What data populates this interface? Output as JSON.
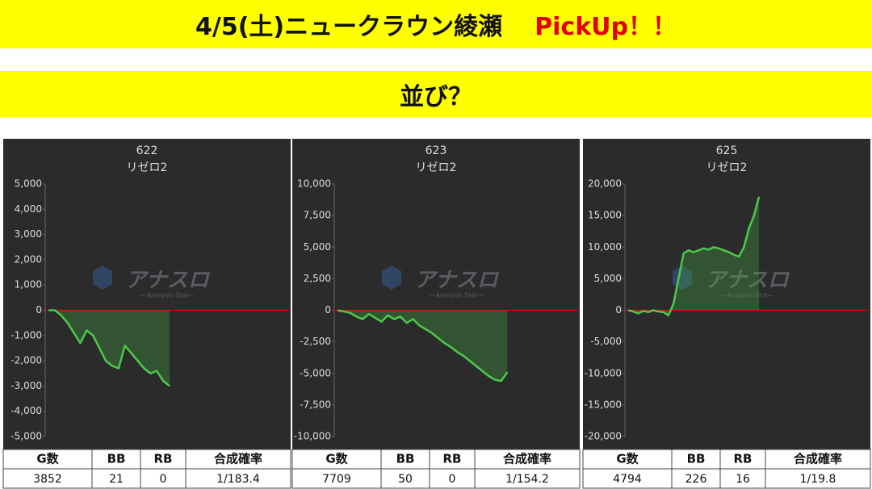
{
  "header": {
    "title": "4/5(土)ニュークラウン綾瀬",
    "highlight": "PickUp！！",
    "subtitle": "並び？"
  },
  "watermark": {
    "title": "アナスロ",
    "subtitle": "—Analysis Slot—"
  },
  "chart_data": [
    {
      "type": "line",
      "title": "622",
      "subtitle": "リゼロ2",
      "color": "#4cc94c",
      "values": [
        0,
        0,
        -200,
        -500,
        -900,
        -1300,
        -800,
        -1000,
        -1500,
        -2000,
        -2200,
        -2300,
        -1400,
        -1700,
        -2000,
        -2300,
        -2500,
        -2400,
        -2800,
        -3000
      ],
      "ylim": [
        -5000,
        5000
      ],
      "yticks": [
        {
          "value": -5000,
          "label": "-5,000"
        },
        {
          "value": -4000,
          "label": "-4,000"
        },
        {
          "value": -3000,
          "label": "-3,000"
        },
        {
          "value": -2000,
          "label": "-2,000"
        },
        {
          "value": -1000,
          "label": "-1,000"
        },
        0,
        {
          "value": 1000,
          "label": "1,000"
        },
        {
          "value": 2000,
          "label": "2,000"
        },
        {
          "value": 3000,
          "label": "3,000"
        },
        {
          "value": 4000,
          "label": "4,000"
        },
        {
          "value": 5000,
          "label": "5,000"
        }
      ]
    },
    {
      "type": "line",
      "title": "623",
      "subtitle": "リゼロ2",
      "color": "#4cc94c",
      "values": [
        0,
        -100,
        -200,
        -500,
        -700,
        -300,
        -600,
        -900,
        -400,
        -700,
        -500,
        -1000,
        -700,
        -1200,
        -1500,
        -1800,
        -2200,
        -2600,
        -2900,
        -3300,
        -3600,
        -4000,
        -4400,
        -4800,
        -5200,
        -5500,
        -5600,
        -4900
      ],
      "ylim": [
        -10000,
        10000
      ],
      "yticks": [
        {
          "value": -10000,
          "label": "-10,000"
        },
        {
          "value": -7500,
          "label": "-7,500"
        },
        {
          "value": -5000,
          "label": "-5,000"
        },
        {
          "value": -2500,
          "label": "-2,500"
        },
        0,
        {
          "value": 2500,
          "label": "2,500"
        },
        {
          "value": 5000,
          "label": "5,000"
        },
        {
          "value": 7500,
          "label": "7,500"
        },
        {
          "value": 10000,
          "label": "10,000"
        }
      ]
    },
    {
      "type": "line",
      "title": "625",
      "subtitle": "リゼロ2",
      "color": "#4cc94c",
      "values": [
        0,
        -200,
        -500,
        -100,
        -300,
        0,
        -200,
        -300,
        -800,
        1000,
        5000,
        9000,
        9500,
        9200,
        9500,
        9800,
        9600,
        10000,
        9800,
        9500,
        9200,
        8800,
        8500,
        10000,
        13000,
        15000,
        18000
      ],
      "ylim": [
        -20000,
        20000
      ],
      "yticks": [
        {
          "value": -20000,
          "label": "-20,000"
        },
        {
          "value": -15000,
          "label": "-15,000"
        },
        {
          "value": -10000,
          "label": "-10,000"
        },
        {
          "value": -5000,
          "label": "-5,000"
        },
        0,
        {
          "value": 5000,
          "label": "5,000"
        },
        {
          "value": 10000,
          "label": "10,000"
        },
        {
          "value": 15000,
          "label": "15,000"
        },
        {
          "value": 20000,
          "label": "20,000"
        }
      ]
    }
  ],
  "tables": [
    {
      "headers": [
        "G数",
        "BB",
        "RB",
        "合成確率"
      ],
      "row": [
        3852,
        21,
        0,
        "1/183.4"
      ]
    },
    {
      "headers": [
        "G数",
        "BB",
        "RB",
        "合成確率"
      ],
      "row": [
        7709,
        50,
        0,
        "1/154.2"
      ]
    },
    {
      "headers": [
        "G数",
        "BB",
        "RB",
        "合成確率"
      ],
      "row": [
        4794,
        226,
        16,
        "1/19.8"
      ]
    }
  ]
}
